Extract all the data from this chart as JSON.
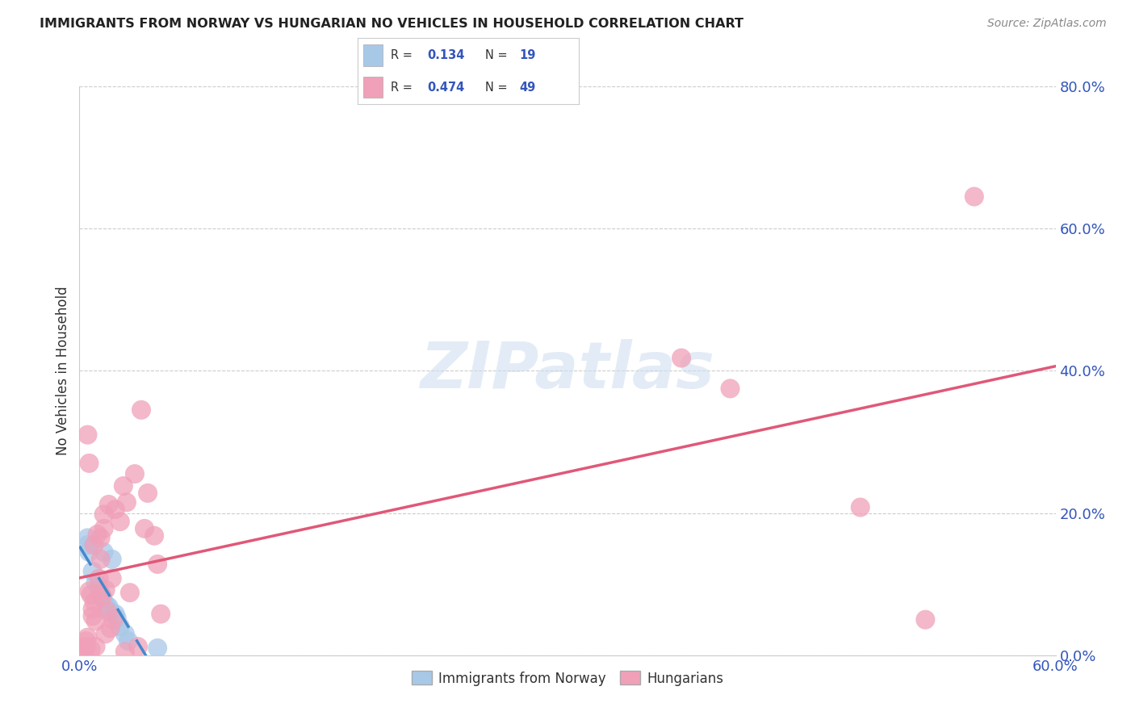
{
  "title": "IMMIGRANTS FROM NORWAY VS HUNGARIAN NO VEHICLES IN HOUSEHOLD CORRELATION CHART",
  "source": "Source: ZipAtlas.com",
  "ylabel": "No Vehicles in Household",
  "xlim": [
    0.0,
    0.6
  ],
  "ylim": [
    0.0,
    0.8
  ],
  "xtick_positions": [
    0.0,
    0.6
  ],
  "xtick_labels": [
    "0.0%",
    "60.0%"
  ],
  "ytick_positions": [
    0.0,
    0.2,
    0.4,
    0.6,
    0.8
  ],
  "ytick_labels": [
    "0.0%",
    "20.0%",
    "40.0%",
    "60.0%",
    "80.0%"
  ],
  "grid_color": "#cccccc",
  "background_color": "#ffffff",
  "norway_R": 0.134,
  "norway_N": 19,
  "hungarian_R": 0.474,
  "hungarian_N": 49,
  "norway_color": "#a8c8e8",
  "hungarian_color": "#f0a0b8",
  "norway_line_color": "#4488cc",
  "hungarian_line_color": "#e05878",
  "norway_scatter": [
    [
      0.005,
      0.165
    ],
    [
      0.005,
      0.155
    ],
    [
      0.006,
      0.145
    ],
    [
      0.008,
      0.118
    ],
    [
      0.01,
      0.102
    ],
    [
      0.012,
      0.095
    ],
    [
      0.013,
      0.088
    ],
    [
      0.014,
      0.082
    ],
    [
      0.015,
      0.145
    ],
    [
      0.016,
      0.072
    ],
    [
      0.018,
      0.068
    ],
    [
      0.019,
      0.062
    ],
    [
      0.02,
      0.135
    ],
    [
      0.022,
      0.058
    ],
    [
      0.023,
      0.052
    ],
    [
      0.025,
      0.04
    ],
    [
      0.028,
      0.03
    ],
    [
      0.03,
      0.02
    ],
    [
      0.048,
      0.01
    ]
  ],
  "hungarian_scatter": [
    [
      0.002,
      0.01
    ],
    [
      0.003,
      0.008
    ],
    [
      0.004,
      0.012
    ],
    [
      0.004,
      0.02
    ],
    [
      0.005,
      0.025
    ],
    [
      0.005,
      0.31
    ],
    [
      0.006,
      0.09
    ],
    [
      0.006,
      0.27
    ],
    [
      0.007,
      0.085
    ],
    [
      0.007,
      0.008
    ],
    [
      0.008,
      0.065
    ],
    [
      0.008,
      0.055
    ],
    [
      0.009,
      0.075
    ],
    [
      0.009,
      0.155
    ],
    [
      0.01,
      0.012
    ],
    [
      0.01,
      0.048
    ],
    [
      0.011,
      0.17
    ],
    [
      0.012,
      0.108
    ],
    [
      0.013,
      0.135
    ],
    [
      0.013,
      0.165
    ],
    [
      0.014,
      0.082
    ],
    [
      0.015,
      0.178
    ],
    [
      0.015,
      0.198
    ],
    [
      0.016,
      0.092
    ],
    [
      0.016,
      0.03
    ],
    [
      0.017,
      0.062
    ],
    [
      0.018,
      0.212
    ],
    [
      0.019,
      0.038
    ],
    [
      0.02,
      0.108
    ],
    [
      0.021,
      0.05
    ],
    [
      0.022,
      0.205
    ],
    [
      0.025,
      0.188
    ],
    [
      0.027,
      0.238
    ],
    [
      0.028,
      0.005
    ],
    [
      0.029,
      0.215
    ],
    [
      0.031,
      0.088
    ],
    [
      0.034,
      0.255
    ],
    [
      0.036,
      0.012
    ],
    [
      0.038,
      0.345
    ],
    [
      0.04,
      0.178
    ],
    [
      0.042,
      0.228
    ],
    [
      0.046,
      0.168
    ],
    [
      0.048,
      0.128
    ],
    [
      0.05,
      0.058
    ],
    [
      0.37,
      0.418
    ],
    [
      0.4,
      0.375
    ],
    [
      0.48,
      0.208
    ],
    [
      0.52,
      0.05
    ],
    [
      0.55,
      0.645
    ]
  ]
}
